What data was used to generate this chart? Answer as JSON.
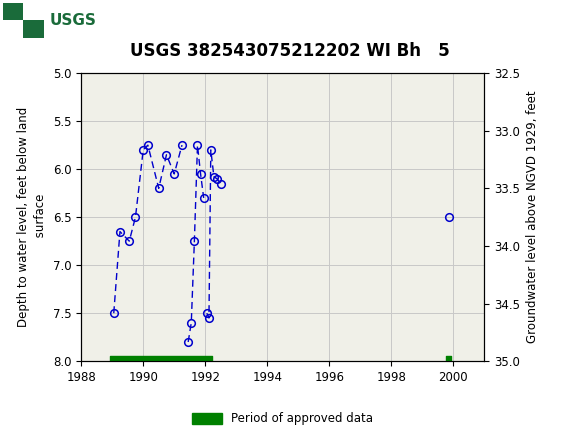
{
  "title": "USGS 382543075212202 WI Bh   5",
  "ylabel_left": "Depth to water level, feet below land\n surface",
  "ylabel_right": "Groundwater level above NGVD 1929, feet",
  "ylim_left": [
    5.0,
    8.0
  ],
  "ylim_right": [
    32.5,
    35.0
  ],
  "xlim": [
    1988,
    2001
  ],
  "xticks": [
    1988,
    1990,
    1992,
    1994,
    1996,
    1998,
    2000
  ],
  "yticks_left": [
    5.0,
    5.5,
    6.0,
    6.5,
    7.0,
    7.5,
    8.0
  ],
  "yticks_right": [
    32.5,
    33.0,
    33.5,
    34.0,
    34.5,
    35.0
  ],
  "segments": [
    {
      "x": [
        1989.05,
        1989.25,
        1989.55,
        1989.75,
        1990.0,
        1990.15,
        1990.5,
        1990.75,
        1991.0,
        1991.25
      ],
      "y": [
        7.5,
        6.65,
        6.75,
        6.5,
        5.8,
        5.75,
        6.2,
        5.85,
        6.05,
        5.75
      ]
    },
    {
      "x": [
        1991.45,
        1991.55,
        1991.65,
        1991.75,
        1991.85,
        1991.95
      ],
      "y": [
        7.8,
        7.6,
        6.75,
        5.75,
        6.05,
        6.3
      ]
    },
    {
      "x": [
        1992.05,
        1992.12,
        1992.18,
        1992.28,
        1992.38,
        1992.5
      ],
      "y": [
        7.5,
        7.55,
        5.8,
        6.08,
        6.1,
        6.15
      ]
    },
    {
      "x": [
        1999.85
      ],
      "y": [
        6.5
      ]
    }
  ],
  "line_color": "#0000CC",
  "marker_color": "#0000CC",
  "approved_bars": [
    {
      "x_start": 1988.92,
      "x_end": 1992.22,
      "color": "#008000"
    },
    {
      "x_start": 1999.78,
      "x_end": 1999.93,
      "color": "#008000"
    }
  ],
  "legend_label": "Period of approved data",
  "legend_color": "#008000",
  "plot_bg": "#f0f0e8",
  "header_color": "#1a6b3a",
  "grid_color": "#c8c8c8",
  "title_fontsize": 12,
  "label_fontsize": 8.5,
  "tick_fontsize": 8.5
}
